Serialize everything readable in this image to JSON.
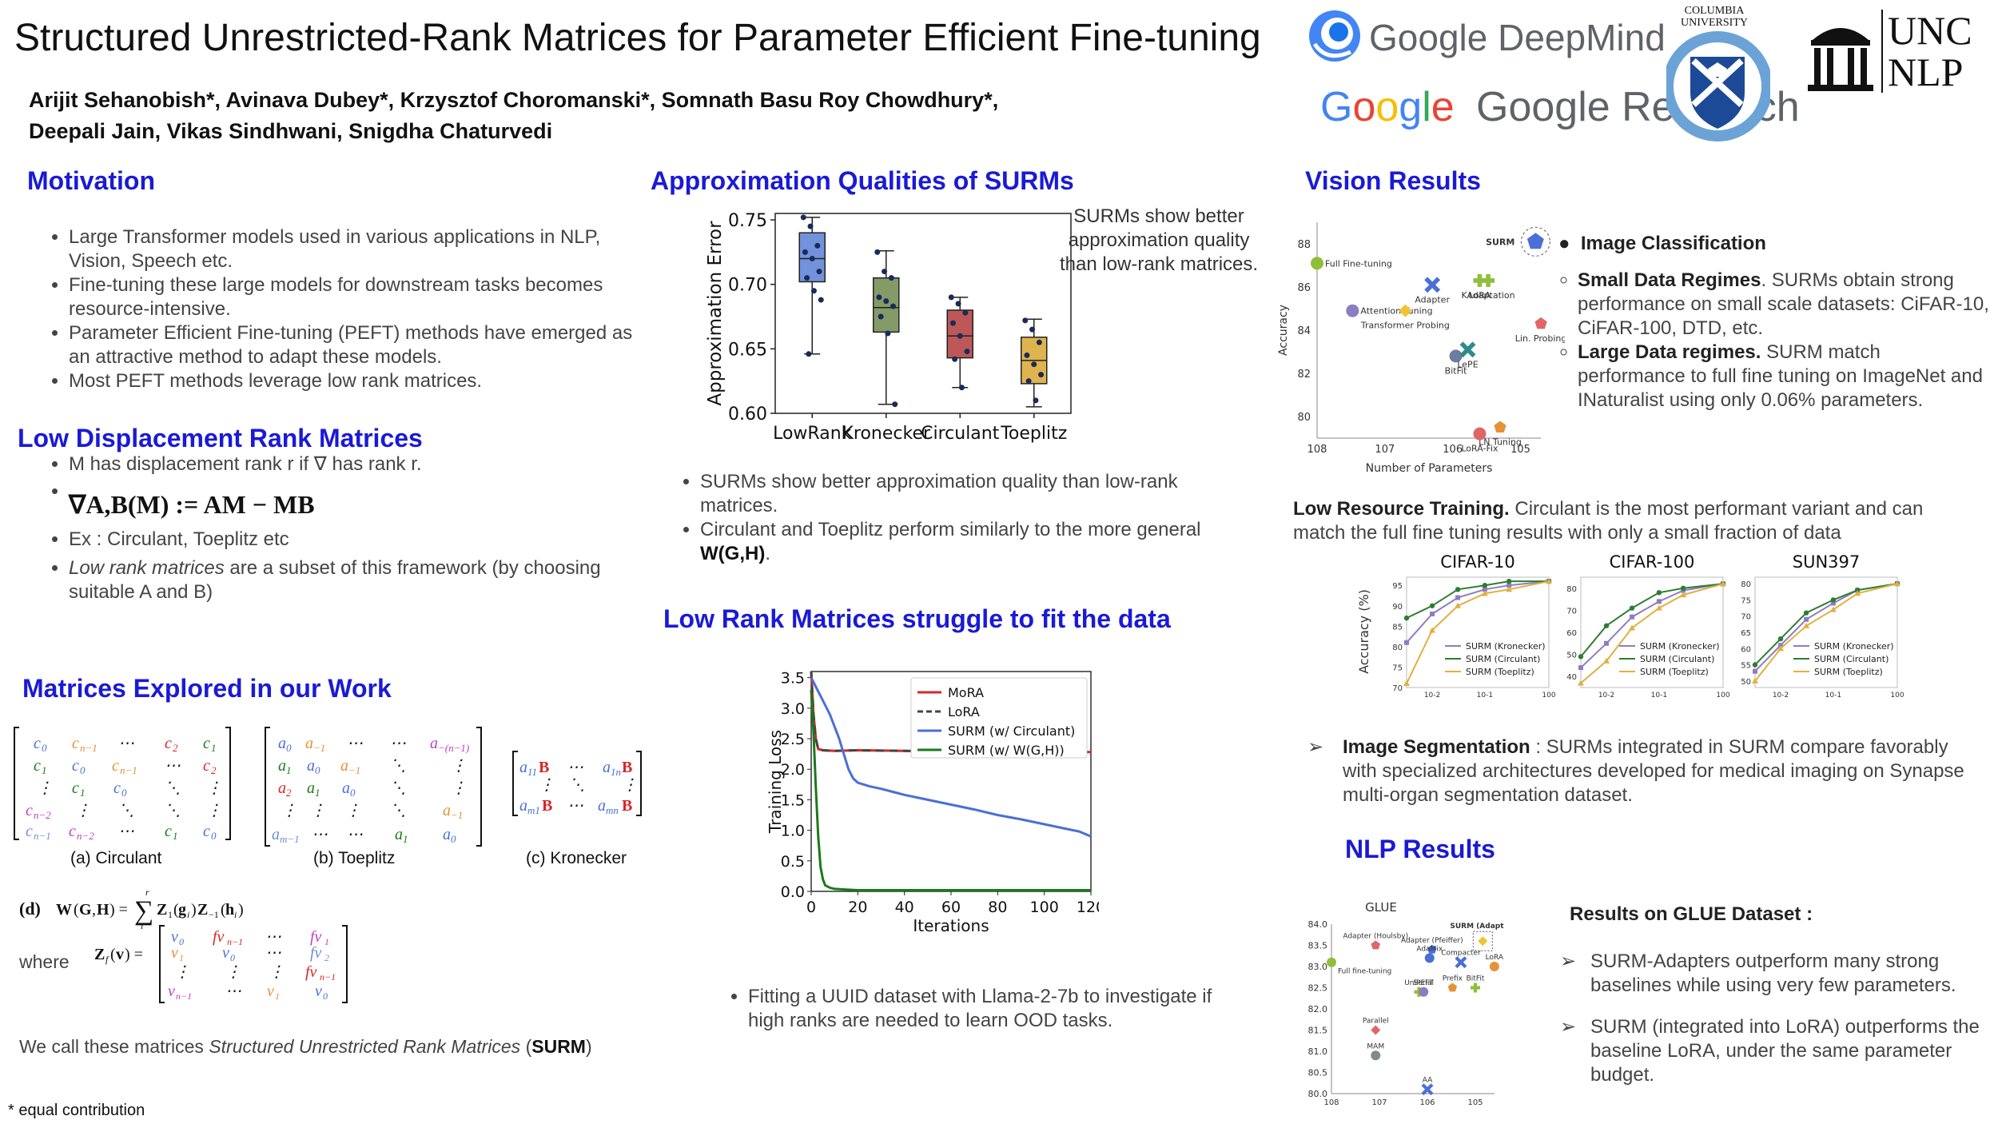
{
  "title": "Structured Unrestricted-Rank Matrices for Parameter Efficient Fine-tuning",
  "authors": {
    "line1": "Arijit Sehanobish*, Avinava Dubey*, Krzysztof Choromanski*, Somnath Basu Roy Chowdhury*,",
    "line2": "Deepali Jain, Vikas Sindhwani, Snigdha Chaturvedi"
  },
  "logos": {
    "deepmind": "Google DeepMind",
    "research": "Google Research",
    "columbia": "COLUMBIA UNIVERSITY",
    "unc1": "UNC",
    "unc2": "NLP"
  },
  "motivation": {
    "heading": "Motivation",
    "items": [
      "Large Transformer models used in various applications in NLP, Vision, Speech etc.",
      "Fine-tuning these large models for downstream tasks becomes resource-intensive.",
      "Parameter Efficient Fine-tuning (PEFT) methods have emerged as an attractive method to adapt these models.",
      "Most PEFT methods leverage low rank matrices."
    ]
  },
  "ldr": {
    "heading": "Low Displacement Rank Matrices",
    "item1": "M has displacement rank r if ∇ has rank r.",
    "formula": "∇A,B(M) := AM − MB",
    "item3": "Ex : Circulant, Toeplitz etc",
    "item4_em": "Low rank matrices",
    "item4_rest": " are a subset of this framework (by choosing suitable A and B)"
  },
  "matrices": {
    "heading": "Matrices Explored in our Work",
    "cap_a": "(a) Circulant",
    "cap_b": "(b) Toeplitz",
    "cap_c": "(c) Kronecker",
    "d_label": "(d)",
    "where": "where",
    "call_prefix": "We call these matrices ",
    "call_em": "Structured Unrestricted Rank Matrices",
    "call_open": " (",
    "call_bold": "SURM",
    "call_close": ")"
  },
  "footnote": "* equal contribution",
  "approx": {
    "heading": "Approximation Qualities of SURMs",
    "note": "SURMs show better approximation quality than low-rank matrices.",
    "bullets": [
      "SURMs show better approximation quality than low-rank matrices.",
      "Circulant and Toeplitz perform similarly to the more general "
    ],
    "bullet2_bold": "W(G,H)",
    "bullet2_end": "."
  },
  "lowrank": {
    "heading": "Low Rank Matrices struggle to fit the data",
    "bullet": "Fitting a UUID dataset with Llama-2-7b to investigate if high ranks are needed to learn OOD tasks."
  },
  "vision": {
    "heading": "Vision Results",
    "image_cls": "Image Classification",
    "small_bold": "Small Data Regimes",
    "small_rest": ". SURMs obtain strong performance on small scale datasets: CiFAR-10, CiFAR-100, DTD, etc.",
    "large_bold": "Large Data regimes.",
    "large_rest": " SURM match performance to full fine tuning on ImageNet and INaturalist using only 0.06% parameters.",
    "lrt_bold": "Low Resource Training.",
    "lrt_rest": " Circulant is the most performant variant and can match the full fine tuning results with only a small fraction of data",
    "seg_bold": "Image Segmentation",
    "seg_rest": " : SURMs integrated in SURM compare favorably with specialized architectures developed for medical imaging on Synapse multi-organ segmentation dataset."
  },
  "nlp": {
    "heading": "NLP Results",
    "glue_title": "Results on GLUE Dataset :",
    "items": [
      "SURM-Adapters outperform many strong baselines while using very few parameters.",
      "SURM (integrated into LoRA) outperforms the baseline LoRA, under the same parameter budget."
    ]
  },
  "chart_data": [
    {
      "type": "box",
      "id": "approx-error",
      "categories": [
        "LowRank",
        "Kronecker",
        "Circulant",
        "Toeplitz"
      ],
      "ylabel": "Approximation Error",
      "ylim": [
        0.6,
        0.755
      ],
      "yticks": [
        0.6,
        0.65,
        0.7,
        0.75
      ],
      "colors": [
        "#5b7fd6",
        "#6e8a4c",
        "#b33a3a",
        "#d9a72f"
      ],
      "boxes": [
        {
          "min": 0.646,
          "q1": 0.702,
          "median": 0.72,
          "q3": 0.74,
          "max": 0.752,
          "points": [
            0.752,
            0.745,
            0.73,
            0.725,
            0.72,
            0.71,
            0.705,
            0.695,
            0.688,
            0.646
          ]
        },
        {
          "min": 0.607,
          "q1": 0.663,
          "median": 0.682,
          "q3": 0.705,
          "max": 0.726,
          "points": [
            0.725,
            0.71,
            0.705,
            0.69,
            0.687,
            0.683,
            0.675,
            0.662,
            0.607
          ]
        },
        {
          "min": 0.62,
          "q1": 0.643,
          "median": 0.66,
          "q3": 0.68,
          "max": 0.69,
          "points": [
            0.69,
            0.685,
            0.678,
            0.67,
            0.66,
            0.648,
            0.642,
            0.62
          ]
        },
        {
          "min": 0.605,
          "q1": 0.623,
          "median": 0.641,
          "q3": 0.659,
          "max": 0.673,
          "points": [
            0.672,
            0.665,
            0.655,
            0.645,
            0.638,
            0.63,
            0.625,
            0.61
          ]
        }
      ]
    },
    {
      "type": "line",
      "id": "training-loss",
      "xlabel": "Iterations",
      "ylabel": "Training Loss",
      "xlim": [
        0,
        120
      ],
      "ylim": [
        0,
        3.6
      ],
      "xticks": [
        0,
        20,
        40,
        60,
        80,
        100,
        120
      ],
      "yticks": [
        0.0,
        0.5,
        1.0,
        1.5,
        2.0,
        2.5,
        3.0,
        3.5
      ],
      "legend": "top-right",
      "series": [
        {
          "name": "MoRA",
          "color": "#d62728",
          "dash": "",
          "x": [
            0,
            1,
            2,
            3,
            5,
            10,
            20,
            40,
            60,
            80,
            100,
            120
          ],
          "y": [
            3.6,
            2.9,
            2.5,
            2.33,
            2.31,
            2.3,
            2.31,
            2.3,
            2.29,
            2.3,
            2.29,
            2.28
          ]
        },
        {
          "name": "LoRA",
          "color": "#444444",
          "dash": "10,7",
          "x": [
            0,
            1,
            2,
            3,
            5,
            10,
            20,
            40,
            60,
            80,
            100,
            120
          ],
          "y": [
            3.6,
            2.9,
            2.5,
            2.33,
            2.31,
            2.3,
            2.31,
            2.3,
            2.29,
            2.3,
            2.29,
            2.28
          ]
        },
        {
          "name": "SURM (w/ Circulant)",
          "color": "#4a6fd6",
          "dash": "",
          "x": [
            0,
            2,
            4,
            6,
            8,
            10,
            12,
            14,
            16,
            18,
            20,
            25,
            30,
            35,
            40,
            50,
            60,
            70,
            80,
            90,
            100,
            110,
            115,
            120
          ],
          "y": [
            3.5,
            3.35,
            3.2,
            3.05,
            2.9,
            2.7,
            2.5,
            2.25,
            2.0,
            1.85,
            1.78,
            1.72,
            1.68,
            1.63,
            1.58,
            1.5,
            1.42,
            1.34,
            1.25,
            1.18,
            1.1,
            1.02,
            0.98,
            0.9
          ]
        },
        {
          "name": "SURM (w/ W(G,H))",
          "color": "#1a7a1a",
          "dash": "",
          "x": [
            0,
            1,
            2,
            3,
            4,
            5,
            6,
            8,
            10,
            15,
            20,
            40,
            60,
            80,
            100,
            120
          ],
          "y": [
            3.3,
            2.6,
            1.7,
            0.9,
            0.4,
            0.2,
            0.1,
            0.06,
            0.04,
            0.03,
            0.02,
            0.02,
            0.02,
            0.02,
            0.02,
            0.02
          ]
        }
      ]
    },
    {
      "type": "scatter",
      "id": "vision-scatter",
      "xlabel": "Number of Parameters",
      "ylabel": "Accuracy",
      "xscale": "log",
      "xticks": [
        "10^8",
        "10^7",
        "10^6",
        "10^5"
      ],
      "yticks": [
        80,
        82,
        84,
        86,
        88
      ],
      "points": [
        {
          "label": "Full Fine-tuning",
          "x": "10^8",
          "y": 87.1,
          "color": "#8fbf3a",
          "shape": "circle"
        },
        {
          "label": "Attention Tuning",
          "x": "3x10^7",
          "y": 84.9,
          "color": "#8e7cc3",
          "shape": "circle"
        },
        {
          "label": "Adapter",
          "x": "2x10^6",
          "y": 86.1,
          "color": "#4a6fd6",
          "shape": "x"
        },
        {
          "label": "Transformer Probing",
          "x": "5x10^6",
          "y": 84.9,
          "color": "#f1c232",
          "shape": "diamond"
        },
        {
          "label": "LoRA",
          "x": "4x10^5",
          "y": 86.3,
          "color": "#8fbf3a",
          "shape": "plus"
        },
        {
          "label": "KAdaptation",
          "x": "3x10^5",
          "y": 86.3,
          "color": "#8fbf3a",
          "shape": "plus"
        },
        {
          "label": "SURM",
          "x": "6x10^4",
          "y": 88.1,
          "color": "#4a6fd6",
          "shape": "pentagon"
        },
        {
          "label": "Lin. Probing",
          "x": "5x10^4",
          "y": 84.3,
          "color": "#e06666",
          "shape": "pentagon"
        },
        {
          "label": "BitFit",
          "x": "9x10^5",
          "y": 82.8,
          "color": "#6a7ea3",
          "shape": "circle"
        },
        {
          "label": "LePE",
          "x": "6x10^5",
          "y": 83.1,
          "color": "#2e8b8b",
          "shape": "x"
        },
        {
          "label": "LN Tuning",
          "x": "2x10^5",
          "y": 79.5,
          "color": "#e69138",
          "shape": "pentagon"
        },
        {
          "label": "LoRA-Fix",
          "x": "4x10^5",
          "y": 79.2,
          "color": "#e06666",
          "shape": "circle"
        }
      ]
    },
    {
      "type": "line",
      "id": "lowres-cifar10",
      "title": "CIFAR-10",
      "ylabel": "Accuracy (%)",
      "yticks": [
        70,
        75,
        80,
        85,
        90,
        95
      ],
      "ylim": [
        70,
        97
      ],
      "xticks": [
        "10^-2",
        "10^-1",
        "10^0"
      ],
      "series": [
        {
          "name": "SURM (Kronecker)",
          "color": "#8e7cc3",
          "y": [
            81,
            88,
            92,
            94,
            95,
            96
          ]
        },
        {
          "name": "SURM (Circulant)",
          "color": "#2e7d32",
          "y": [
            87,
            90,
            94,
            95,
            96,
            96
          ]
        },
        {
          "name": "SURM (Toeplitz)",
          "color": "#e0b040",
          "y": [
            71,
            84,
            90,
            93,
            94,
            96
          ]
        }
      ]
    },
    {
      "type": "line",
      "id": "lowres-cifar100",
      "title": "CIFAR-100",
      "yticks": [
        40,
        50,
        60,
        70,
        80
      ],
      "ylim": [
        35,
        85
      ],
      "xticks": [
        "10^-2",
        "10^-1",
        "10^0"
      ],
      "series": [
        {
          "name": "SURM (Kronecker)",
          "color": "#8e7cc3",
          "y": [
            44,
            55,
            67,
            74,
            79,
            82
          ]
        },
        {
          "name": "SURM (Circulant)",
          "color": "#2e7d32",
          "y": [
            49,
            63,
            71,
            78,
            80,
            82
          ]
        },
        {
          "name": "SURM (Toeplitz)",
          "color": "#e0b040",
          "y": [
            37,
            47,
            62,
            71,
            77,
            82
          ]
        }
      ]
    },
    {
      "type": "line",
      "id": "lowres-sun397",
      "title": "SUN397",
      "yticks": [
        50,
        55,
        60,
        65,
        70,
        75,
        80
      ],
      "ylim": [
        48,
        82
      ],
      "xticks": [
        "10^-2",
        "10^-1",
        "10^0"
      ],
      "series": [
        {
          "name": "SURM (Kronecker)",
          "color": "#8e7cc3",
          "y": [
            53,
            61,
            69,
            74,
            78,
            80
          ]
        },
        {
          "name": "SURM (Circulant)",
          "color": "#2e7d32",
          "y": [
            55,
            63,
            71,
            75,
            78,
            80
          ]
        },
        {
          "name": "SURM (Toeplitz)",
          "color": "#e0b040",
          "y": [
            50,
            60,
            67,
            72,
            77,
            80
          ]
        }
      ]
    },
    {
      "type": "scatter",
      "id": "glue-scatter",
      "title": "GLUE",
      "xscale": "log",
      "xticks": [
        "10^8",
        "10^7",
        "10^6",
        "10^5"
      ],
      "yticks": [
        80.0,
        80.5,
        81.0,
        81.5,
        82.0,
        82.5,
        83.0,
        83.5,
        84.0
      ],
      "points": [
        {
          "label": "SURM (Adapter)",
          "x": "7x10^4",
          "y": 83.6,
          "color": "#f1c232",
          "shape": "diamond"
        },
        {
          "label": "Full fine-tuning",
          "x": "10^8",
          "y": 83.1,
          "color": "#8fbf3a",
          "shape": "circle"
        },
        {
          "label": "Adapter (Houlsby)",
          "x": "1.2x10^7",
          "y": 83.5,
          "color": "#e06666",
          "shape": "pentagon"
        },
        {
          "label": "Adapter (Pfeiffer)",
          "x": "8x10^5",
          "y": 83.4,
          "color": "#4a6fd6",
          "shape": "pentagon"
        },
        {
          "label": "AdaMix",
          "x": "9x10^5",
          "y": 83.2,
          "color": "#4a6fd6",
          "shape": "circle"
        },
        {
          "label": "Compacter",
          "x": "2x10^5",
          "y": 83.1,
          "color": "#4a6fd6",
          "shape": "x"
        },
        {
          "label": "LoRA",
          "x": "4x10^4",
          "y": 83.0,
          "color": "#e69138",
          "shape": "circle"
        },
        {
          "label": "UniPEFT",
          "x": "1.5x10^6",
          "y": 82.4,
          "color": "#8fbf3a",
          "shape": "plus"
        },
        {
          "label": "Serial",
          "x": "1.2x10^6",
          "y": 82.4,
          "color": "#8e7cc3",
          "shape": "circle"
        },
        {
          "label": "Prefix",
          "x": "3x10^5",
          "y": 82.5,
          "color": "#e69138",
          "shape": "pentagon"
        },
        {
          "label": "BitFit",
          "x": "1x10^5",
          "y": 82.5,
          "color": "#8fbf3a",
          "shape": "plus"
        },
        {
          "label": "Parallel",
          "x": "1.2x10^7",
          "y": 81.5,
          "color": "#e06666",
          "shape": "diamond"
        },
        {
          "label": "MAM",
          "x": "1.2x10^7",
          "y": 80.9,
          "color": "#7f8c8d",
          "shape": "circle"
        },
        {
          "label": "AA",
          "x": "1x10^6",
          "y": 80.1,
          "color": "#4a6fd6",
          "shape": "x"
        }
      ]
    }
  ]
}
